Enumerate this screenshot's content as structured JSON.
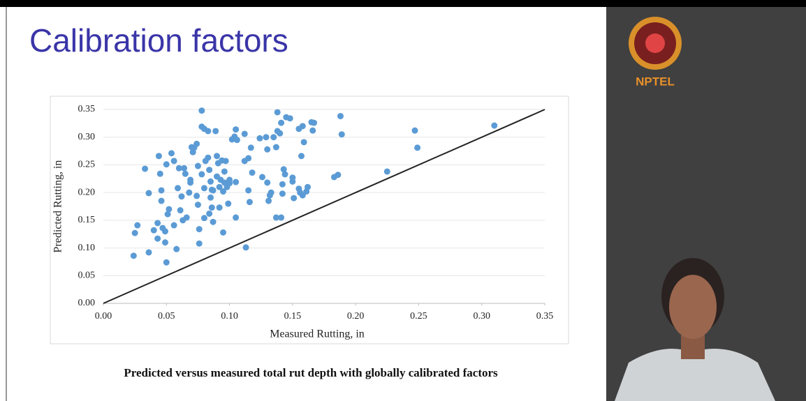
{
  "slide": {
    "title": "Calibration factors",
    "caption": "Predicted versus measured total rut depth with globally calibrated factors",
    "logo_text": "NPTEL"
  },
  "chart_data": {
    "type": "scatter",
    "x_label": "Measured Rutting, in",
    "y_label": "Predicted Rutting, in",
    "xlim": [
      0,
      0.35
    ],
    "ylim": [
      0,
      0.35
    ],
    "xticks": [
      {
        "value": 0,
        "label": "0.00"
      },
      {
        "value": 0.05,
        "label": "0.05"
      },
      {
        "value": 0.1,
        "label": "0.10"
      },
      {
        "value": 0.15,
        "label": "0.15"
      },
      {
        "value": 0.2,
        "label": "0.20"
      },
      {
        "value": 0.25,
        "label": "0.25"
      },
      {
        "value": 0.3,
        "label": "0.30"
      },
      {
        "value": 0.35,
        "label": "0.35"
      }
    ],
    "yticks": [
      {
        "value": 0,
        "label": "0.00"
      },
      {
        "value": 0.05,
        "label": "0.05"
      },
      {
        "value": 0.1,
        "label": "0.10"
      },
      {
        "value": 0.15,
        "label": "0.15"
      },
      {
        "value": 0.2,
        "label": "0.20"
      },
      {
        "value": 0.25,
        "label": "0.25"
      },
      {
        "value": 0.3,
        "label": "0.30"
      },
      {
        "value": 0.35,
        "label": "0.35"
      }
    ],
    "grid": true,
    "color": "#5b9bd5",
    "reference_line_color": "#222222",
    "x": [
      0.024,
      0.025,
      0.027,
      0.033,
      0.036,
      0.036,
      0.04,
      0.043,
      0.043,
      0.044,
      0.045,
      0.046,
      0.046,
      0.047,
      0.049,
      0.049,
      0.05,
      0.05,
      0.051,
      0.052,
      0.054,
      0.056,
      0.056,
      0.058,
      0.059,
      0.06,
      0.061,
      0.062,
      0.063,
      0.064,
      0.065,
      0.066,
      0.068,
      0.069,
      0.069,
      0.07,
      0.071,
      0.072,
      0.074,
      0.074,
      0.075,
      0.075,
      0.076,
      0.076,
      0.078,
      0.078,
      0.078,
      0.08,
      0.08,
      0.08,
      0.081,
      0.083,
      0.083,
      0.084,
      0.084,
      0.085,
      0.085,
      0.086,
      0.086,
      0.087,
      0.087,
      0.089,
      0.09,
      0.09,
      0.091,
      0.092,
      0.092,
      0.093,
      0.094,
      0.095,
      0.095,
      0.096,
      0.096,
      0.097,
      0.098,
      0.099,
      0.1,
      0.1,
      0.102,
      0.104,
      0.105,
      0.105,
      0.105,
      0.106,
      0.112,
      0.112,
      0.113,
      0.115,
      0.115,
      0.116,
      0.117,
      0.118,
      0.124,
      0.126,
      0.129,
      0.13,
      0.13,
      0.131,
      0.132,
      0.133,
      0.135,
      0.137,
      0.137,
      0.138,
      0.138,
      0.14,
      0.141,
      0.141,
      0.142,
      0.142,
      0.143,
      0.144,
      0.145,
      0.148,
      0.15,
      0.15,
      0.151,
      0.155,
      0.155,
      0.156,
      0.157,
      0.158,
      0.158,
      0.159,
      0.161,
      0.162,
      0.165,
      0.166,
      0.167,
      0.183,
      0.186,
      0.188,
      0.189,
      0.225,
      0.247,
      0.249,
      0.31
    ],
    "y": [
      0.086,
      0.127,
      0.141,
      0.243,
      0.199,
      0.092,
      0.132,
      0.145,
      0.117,
      0.266,
      0.234,
      0.204,
      0.185,
      0.136,
      0.13,
      0.11,
      0.074,
      0.251,
      0.161,
      0.17,
      0.271,
      0.257,
      0.141,
      0.098,
      0.208,
      0.244,
      0.168,
      0.193,
      0.15,
      0.244,
      0.234,
      0.155,
      0.2,
      0.218,
      0.223,
      0.282,
      0.273,
      0.281,
      0.288,
      0.194,
      0.178,
      0.248,
      0.134,
      0.108,
      0.348,
      0.233,
      0.319,
      0.315,
      0.154,
      0.208,
      0.257,
      0.263,
      0.311,
      0.241,
      0.162,
      0.22,
      0.191,
      0.173,
      0.205,
      0.147,
      0.204,
      0.311,
      0.266,
      0.229,
      0.253,
      0.173,
      0.21,
      0.223,
      0.258,
      0.128,
      0.202,
      0.238,
      0.218,
      0.257,
      0.21,
      0.18,
      0.223,
      0.217,
      0.296,
      0.301,
      0.314,
      0.219,
      0.155,
      0.295,
      0.306,
      0.257,
      0.101,
      0.262,
      0.204,
      0.183,
      0.281,
      0.236,
      0.298,
      0.228,
      0.3,
      0.278,
      0.218,
      0.185,
      0.195,
      0.2,
      0.3,
      0.155,
      0.282,
      0.311,
      0.345,
      0.307,
      0.326,
      0.155,
      0.215,
      0.198,
      0.242,
      0.233,
      0.336,
      0.334,
      0.227,
      0.22,
      0.19,
      0.315,
      0.207,
      0.2,
      0.266,
      0.32,
      0.195,
      0.291,
      0.202,
      0.21,
      0.327,
      0.312,
      0.326,
      0.228,
      0.232,
      0.338,
      0.305,
      0.238,
      0.312,
      0.281,
      0.321
    ]
  }
}
